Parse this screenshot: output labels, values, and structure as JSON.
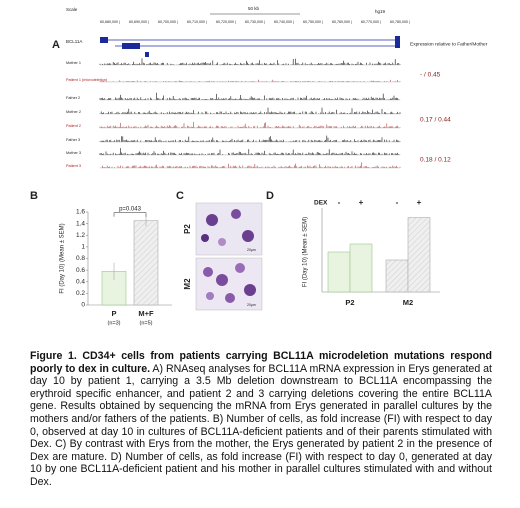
{
  "panel_labels": [
    "A",
    "B",
    "C",
    "D"
  ],
  "panel_a": {
    "scale": "Scale",
    "scale_bar": "50 kb",
    "assembly": "hg19",
    "coordinates": [
      "60,680,000 |",
      "60,690,000 |",
      "60,700,000 |",
      "60,710,000 |",
      "60,720,000 |",
      "60,730,000 |",
      "60,740,000 |",
      "60,750,000 |",
      "60,760,000 |",
      "60,770,000 |",
      "60,780,000 |"
    ],
    "gene": "BCL11A",
    "expression_header": "Expression relative to Father/Mother",
    "tracks": [
      {
        "label": "Mother 1"
      },
      {
        "label": "Patient 1 (microdeletion)"
      },
      {
        "label": "Father 2"
      },
      {
        "label": "Mother 2"
      },
      {
        "label": "Patient 2"
      },
      {
        "label": "Father 3"
      },
      {
        "label": "Mother 3"
      },
      {
        "label": "Patient 3"
      }
    ],
    "ratios": [
      "- / 0.45",
      "0.17 / 0.44",
      "0.18 / 0.12"
    ]
  },
  "panel_c": {
    "rows": [
      "P2",
      "M2"
    ],
    "scale": "20µm"
  },
  "chart_data": [
    {
      "type": "bar",
      "y_label": "FI (Day 10) (Mean ± SEM)",
      "categories": [
        "P",
        "M+F"
      ],
      "category_notes": [
        "(n=3)",
        "(n=5)"
      ],
      "values": [
        0.58,
        1.45
      ],
      "errors": [
        0.15,
        0.1
      ],
      "colors": [
        "#e8f3e0",
        "#ededed"
      ],
      "stroke_colors": [
        "#9cc98c",
        "#aaaaaa"
      ],
      "annotation": "p=0.043",
      "ylim": [
        0,
        1.6
      ],
      "yticks": [
        0,
        0.2,
        0.4,
        0.6,
        0.8,
        1,
        1.2,
        1.4,
        1.6
      ]
    },
    {
      "type": "grouped_bar",
      "y_label": "FI (Day 10) (Mean ± SEM)",
      "legend_title": "DEX",
      "categories": [
        "P2",
        "M2"
      ],
      "colors": [
        "#e8f3e0",
        "#ededed"
      ],
      "stroke_colors": [
        "#9cc98c",
        "#aaaaaa"
      ],
      "series": [
        {
          "name": "-",
          "values": [
            0.5,
            0.4
          ]
        },
        {
          "name": "+",
          "values": [
            0.6,
            0.93
          ]
        }
      ],
      "ylim": [
        0,
        1
      ]
    }
  ],
  "caption": {
    "bold": "Figure 1. CD34+ cells from patients carrying BCL11A microdeletion mutations respond poorly to dex in culture.",
    "text": " A) RNAseq analyses for BCL11A mRNA expression in Erys generated at day 10 by patient 1, carrying a 3.5 Mb deletion downstream to BCL11A encompassing the erythroid specific enhancer, and patient 2 and 3 carrying deletions covering the entire BCL11A gene. Results obtained by sequencing the mRNA from Erys generated in parallel cultures by the mothers and/or fathers of the patients. B) Number of cells, as fold increase (FI) with respect to day 0, observed at day 10 in cultures of BCL11A-deficient patients and of their parents stimulated with Dex. C) By contrast with Erys from the mother, the Erys generated by patient 2 in the presence of Dex are mature. D) Number of cells, as fold increase (FI) with respect to day 0, generated at day 10 by one BCL11A-deficient patient and his mother in parallel cultures stimulated with and without Dex."
  }
}
